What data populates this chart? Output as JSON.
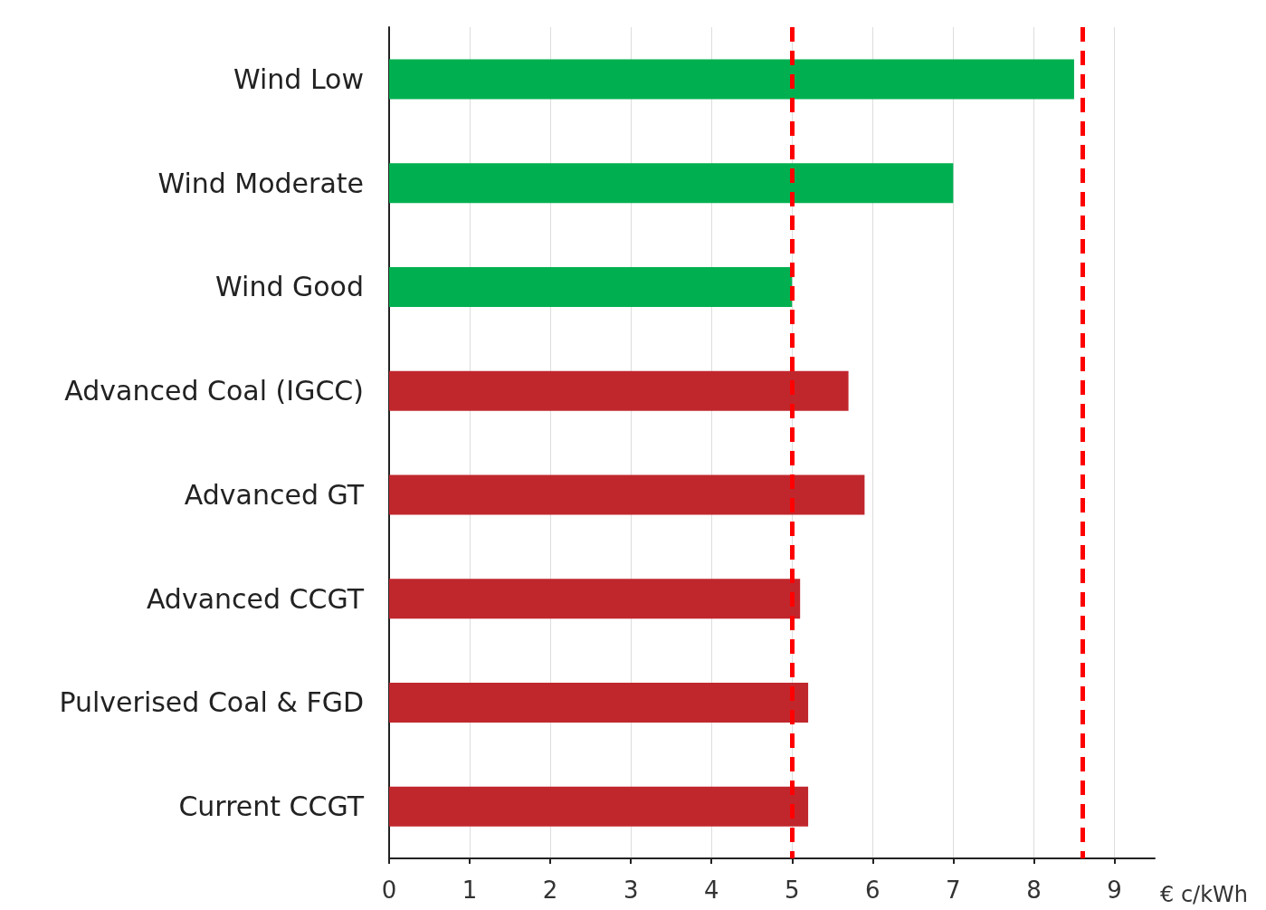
{
  "chart_data": {
    "type": "bar",
    "orientation": "horizontal",
    "xlabel": "€ c/kWh",
    "categories": [
      "Wind Low",
      "Wind Moderate",
      "Wind Good",
      "Advanced Coal (IGCC)",
      "Advanced GT",
      "Advanced CCGT",
      "Pulverised Coal & FGD",
      "Current CCGT"
    ],
    "values": [
      8.5,
      7.0,
      5.0,
      5.7,
      5.9,
      5.1,
      5.2,
      5.2
    ],
    "colors": [
      "#00b050",
      "#00b050",
      "#00b050",
      "#c0272d",
      "#c0272d",
      "#c0272d",
      "#c0272d",
      "#c0272d"
    ],
    "xlim": [
      0,
      9.5
    ],
    "xticks": [
      0,
      1,
      2,
      3,
      4,
      5,
      6,
      7,
      8,
      9
    ],
    "grid": "x",
    "ref_lines": [
      {
        "axis": "x",
        "value": 5.0,
        "color": "#ff0000",
        "line_style": "dashed"
      },
      {
        "axis": "x",
        "value": 8.6,
        "color": "#ff0000",
        "line_style": "dashed"
      }
    ]
  }
}
